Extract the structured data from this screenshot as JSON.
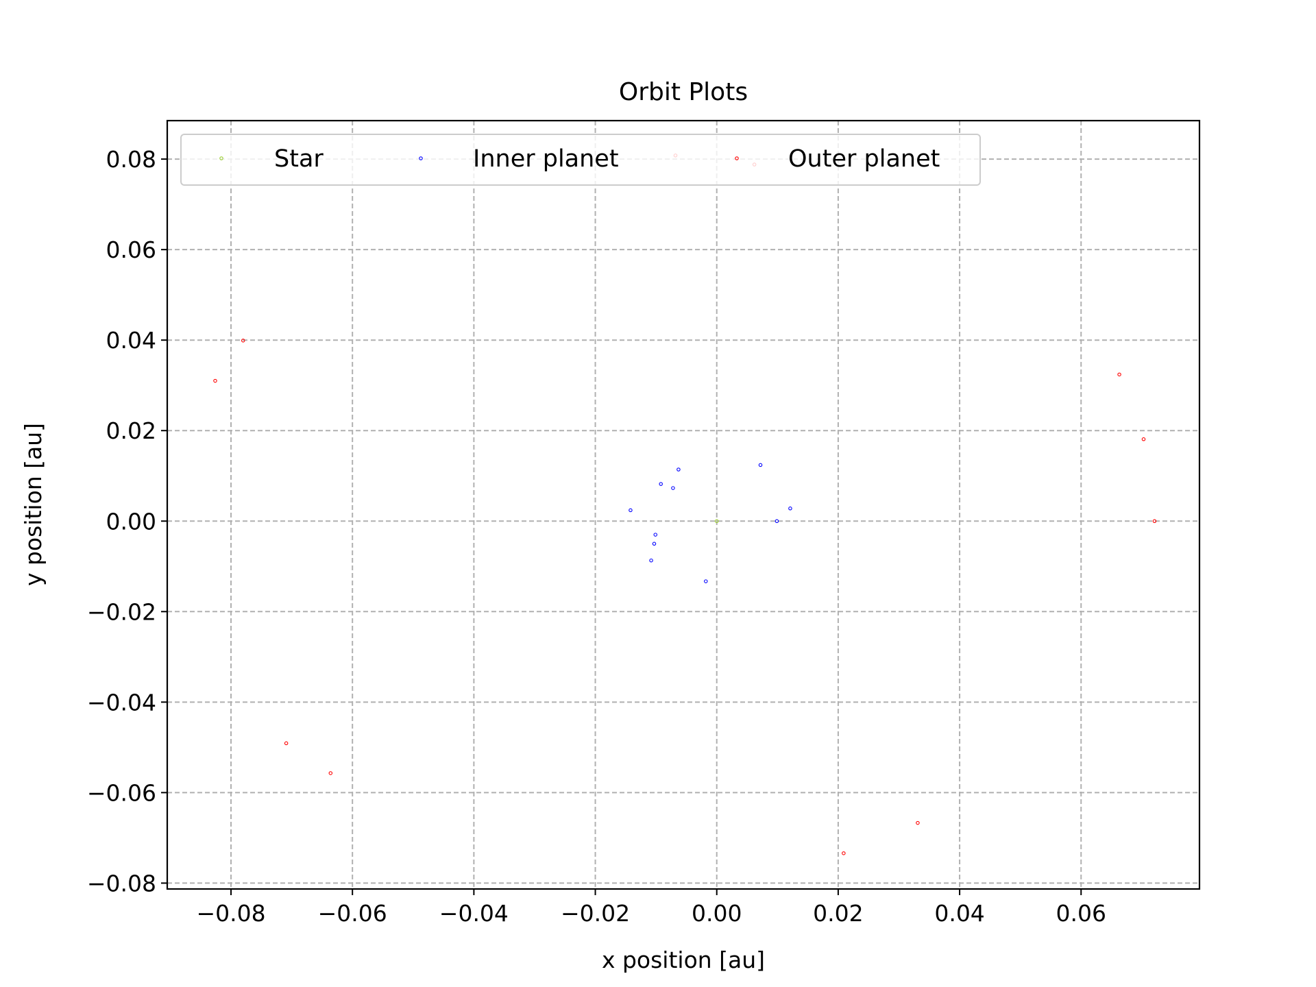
{
  "chart_data": {
    "type": "scatter",
    "title": "Orbit Plots",
    "xlabel": "x position [au]",
    "ylabel": "y position [au]",
    "xlim": [
      -0.0905,
      0.0795
    ],
    "ylim": [
      -0.0813,
      0.0885
    ],
    "xticks": [
      -0.08,
      -0.06,
      -0.04,
      -0.02,
      0.0,
      0.02,
      0.04,
      0.06
    ],
    "xtick_labels": [
      "−0.08",
      "−0.06",
      "−0.04",
      "−0.02",
      "0.00",
      "0.02",
      "0.04",
      "0.06"
    ],
    "yticks": [
      0.08,
      0.06,
      0.04,
      0.02,
      0.0,
      -0.02,
      -0.04,
      -0.06,
      -0.08
    ],
    "ytick_labels": [
      "0.08",
      "0.06",
      "0.04",
      "0.02",
      "0.00",
      "−0.02",
      "−0.04",
      "−0.06",
      "−0.08"
    ],
    "grid": true,
    "legend_position": "top-left",
    "series": [
      {
        "name": "Star",
        "color": "#9acd32",
        "points": [
          [
            0.0,
            0.0
          ]
        ]
      },
      {
        "name": "Inner planet",
        "color": "#0000ff",
        "points": [
          [
            0.0099,
            0.0
          ],
          [
            0.0121,
            0.0028
          ],
          [
            0.0072,
            0.0124
          ],
          [
            -0.0063,
            0.0114
          ],
          [
            -0.0092,
            0.0082
          ],
          [
            -0.0072,
            0.0073
          ],
          [
            -0.0142,
            0.0024
          ],
          [
            -0.0101,
            -0.003
          ],
          [
            -0.0103,
            -0.005
          ],
          [
            -0.0108,
            -0.0087
          ],
          [
            -0.0018,
            -0.0133
          ]
        ]
      },
      {
        "name": "Outer planet",
        "color": "#ff0000",
        "points": [
          [
            0.0721,
            0.0
          ],
          [
            0.0703,
            0.0181
          ],
          [
            0.0663,
            0.0324
          ],
          [
            0.0331,
            -0.0667
          ],
          [
            0.0209,
            -0.0734
          ],
          [
            -0.0636,
            -0.0557
          ],
          [
            -0.0709,
            -0.0491
          ],
          [
            -0.0826,
            0.031
          ],
          [
            -0.078,
            0.0399
          ],
          [
            -0.0068,
            0.0808
          ],
          [
            0.0062,
            0.0788
          ]
        ]
      }
    ]
  }
}
